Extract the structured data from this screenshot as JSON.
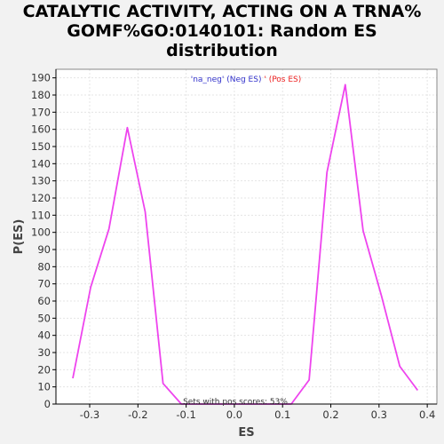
{
  "title_lines": [
    "CATALYTIC ACTIVITY, ACTING ON A TRNA%",
    "GOMF%GO:0140101: Random ES",
    "distribution"
  ],
  "colors": {
    "line": "#ee44ee",
    "neg_legend": "#3333cc",
    "pos_legend": "#ee2222",
    "grid": "#e4e4e4",
    "axis": "#000000",
    "plot_bg": "#ffffff",
    "page_bg": "#f2f2f2"
  },
  "legend": {
    "neg_label": "'na_neg' (Neg ES)",
    "sep": "' ",
    "pos_label": "(Pos ES)"
  },
  "annotation": "Sets with pos scores: 53%",
  "chart_data": {
    "type": "line",
    "title": "CATALYTIC ACTIVITY, ACTING ON A TRNA% GOMF%GO:0140101: Random ES distribution",
    "xlabel": "ES",
    "ylabel": "P(ES)",
    "xlim": [
      -0.37,
      0.42
    ],
    "ylim": [
      0,
      195
    ],
    "grid": true,
    "x_ticks": [
      -0.3,
      -0.2,
      -0.1,
      0.0,
      0.1,
      0.2,
      0.3,
      0.4
    ],
    "x_tick_labels": [
      "-0.3",
      "-0.2",
      "-0.1",
      "0.0",
      "0.1",
      "0.2",
      "0.3",
      "0.4"
    ],
    "y_ticks": [
      0,
      10,
      20,
      30,
      40,
      50,
      60,
      70,
      80,
      90,
      100,
      110,
      120,
      130,
      140,
      150,
      160,
      170,
      180,
      190
    ],
    "y_tick_labels": [
      "0",
      "10",
      "20",
      "30",
      "40",
      "50",
      "60",
      "70",
      "80",
      "90",
      "100",
      "110",
      "120",
      "130",
      "140",
      "150",
      "160",
      "170",
      "180",
      "190"
    ],
    "series": [
      {
        "x": [
          -0.335,
          -0.298,
          -0.26,
          -0.222,
          -0.185,
          -0.148,
          -0.11,
          0.0,
          0.118,
          0.155,
          0.192,
          0.23,
          0.267,
          0.305,
          0.343,
          0.38
        ],
        "y": [
          15,
          68,
          102,
          161,
          112,
          12,
          0,
          0,
          0,
          14,
          135,
          186,
          101,
          63,
          22,
          8
        ]
      }
    ]
  }
}
